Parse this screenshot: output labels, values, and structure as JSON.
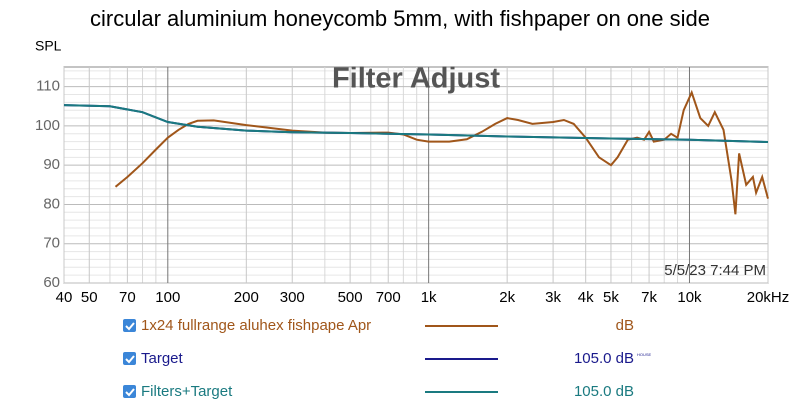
{
  "chart_data": {
    "type": "line",
    "title": "circular aluminium honeycomb 5mm, with fishpaper on one side",
    "subtitle": "Filter Adjust",
    "y_label": "SPL",
    "annotation": "5/5/23 7:44 PM",
    "log_x": true,
    "grid": true,
    "xlim": [
      40,
      20000
    ],
    "ylim": [
      60,
      115
    ],
    "xticks": [
      40,
      50,
      70,
      100,
      200,
      300,
      500,
      700,
      {
        "value": 1000,
        "label": "1k"
      },
      {
        "value": 2000,
        "label": "2k"
      },
      {
        "value": 3000,
        "label": "3k"
      },
      {
        "value": 4000,
        "label": "4k"
      },
      {
        "value": 5000,
        "label": "5k"
      },
      {
        "value": 7000,
        "label": "7k"
      },
      {
        "value": 10000,
        "label": "10k"
      },
      {
        "value": 20000,
        "label": "20kHz"
      }
    ],
    "x_minor_ticks": [
      60,
      80,
      90,
      400,
      600,
      800,
      900,
      6000,
      8000,
      9000
    ],
    "yticks": [
      60,
      70,
      80,
      90,
      100,
      110
    ],
    "y_minor_ticks": [
      62,
      64,
      66,
      68,
      72,
      74,
      76,
      78,
      82,
      84,
      86,
      88,
      92,
      94,
      96,
      98,
      102,
      104,
      106,
      108,
      112,
      114
    ],
    "series": [
      {
        "name": "1x24 fullrange aluhex fishpape Apr",
        "color": "#a0561a",
        "legend_value": "dB",
        "x": [
          63,
          70,
          80,
          90,
          100,
          110,
          120,
          130,
          150,
          200,
          300,
          400,
          500,
          700,
          800,
          900,
          1000,
          1200,
          1400,
          1600,
          1800,
          2000,
          2200,
          2500,
          3000,
          3300,
          3600,
          4000,
          4500,
          5000,
          5300,
          5800,
          6300,
          6700,
          7000,
          7300,
          8000,
          8500,
          9000,
          9500,
          10200,
          11000,
          11800,
          12500,
          13500,
          14500,
          15000,
          15500,
          16500,
          17500,
          18000,
          19000,
          20000
        ],
        "values": [
          84.5,
          87,
          90.5,
          94,
          97,
          99,
          100.5,
          101.3,
          101.4,
          100.2,
          98.8,
          98.3,
          98.2,
          98.3,
          97.8,
          96.5,
          96,
          96,
          96.6,
          98.5,
          100.5,
          102,
          101.5,
          100.5,
          101,
          101.5,
          100.5,
          97,
          92,
          90,
          92,
          96.5,
          97,
          96.5,
          98.5,
          96,
          96.5,
          98,
          97,
          104,
          108.5,
          102,
          100,
          103.5,
          99,
          86,
          77.5,
          93,
          85,
          87,
          83,
          87,
          81.5
        ]
      },
      {
        "name": "Target",
        "color": "#1a1a8c",
        "legend_value": "105.0 dB",
        "legend_note": "HOUSE",
        "x": [
          40,
          60,
          80,
          100,
          130,
          200,
          300,
          500,
          1000,
          2000,
          5000,
          10000,
          20000
        ],
        "values": [
          105.3,
          105,
          103.5,
          101,
          99.8,
          98.8,
          98.4,
          98.2,
          97.8,
          97.3,
          96.8,
          96.5,
          95.9
        ]
      },
      {
        "name": "Filters+Target",
        "color": "#1a7a80",
        "legend_value": "105.0 dB",
        "x": [
          40,
          60,
          80,
          100,
          130,
          200,
          300,
          500,
          1000,
          2000,
          5000,
          10000,
          20000
        ],
        "values": [
          105.3,
          105,
          103.5,
          101,
          99.8,
          98.8,
          98.4,
          98.2,
          97.8,
          97.3,
          96.8,
          96.5,
          95.9
        ]
      }
    ]
  }
}
